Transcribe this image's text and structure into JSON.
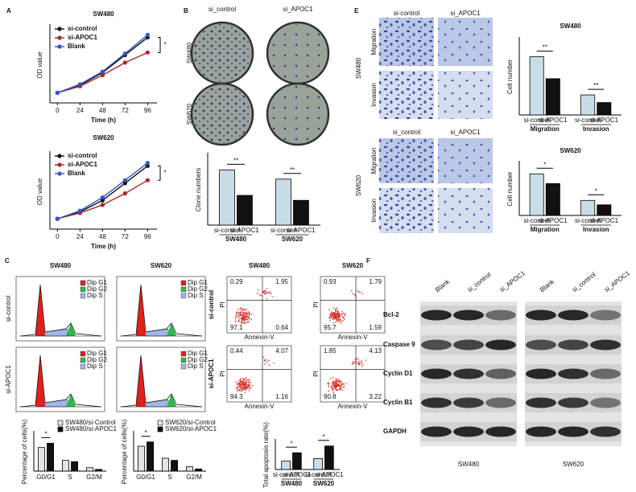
{
  "panel_labels": [
    "A",
    "B",
    "C",
    "E",
    "F"
  ],
  "chart_data": [
    {
      "type": "line",
      "title": "SW480",
      "x_label": "Time (h)",
      "y_label": "OD value",
      "x": [
        0,
        24,
        48,
        72,
        96
      ],
      "xlim": [
        -8,
        106
      ],
      "xticks": [
        0,
        24,
        48,
        72,
        96
      ],
      "ylim": [
        0,
        1.5
      ],
      "legend": "upper-left",
      "significance": "*",
      "series": [
        {
          "name": "si-control",
          "color": "#111111",
          "values": [
            0.2,
            0.35,
            0.6,
            0.95,
            1.3
          ]
        },
        {
          "name": "si-APOC1",
          "color": "#a52a2a",
          "values": [
            0.2,
            0.33,
            0.55,
            0.8,
            1.0
          ]
        },
        {
          "name": "Blank",
          "color": "#3355cc",
          "values": [
            0.2,
            0.37,
            0.62,
            0.98,
            1.35
          ]
        }
      ]
    },
    {
      "type": "line",
      "title": "SW620",
      "x_label": "Time (h)",
      "y_label": "OD value",
      "x": [
        0,
        24,
        48,
        72,
        96
      ],
      "xlim": [
        -8,
        106
      ],
      "xticks": [
        0,
        24,
        48,
        72,
        96
      ],
      "ylim": [
        0,
        1.3
      ],
      "legend": "upper-left",
      "significance": "*",
      "series": [
        {
          "name": "si-control",
          "color": "#111111",
          "values": [
            0.18,
            0.3,
            0.5,
            0.8,
            1.1
          ]
        },
        {
          "name": "si-APOC1",
          "color": "#a52a2a",
          "values": [
            0.18,
            0.28,
            0.42,
            0.62,
            0.85
          ]
        },
        {
          "name": "Blank",
          "color": "#3355cc",
          "values": [
            0.18,
            0.32,
            0.55,
            0.85,
            1.15
          ]
        }
      ]
    },
    {
      "type": "bar",
      "y_label": "Clone numbers",
      "categories": [
        "SW480",
        "SW620"
      ],
      "significance": [
        "**",
        "**"
      ],
      "ylim": [
        0,
        500
      ],
      "bar_labels": true,
      "series": [
        {
          "name": "si-control",
          "color": "#c9dde8",
          "values": [
            390,
            325
          ]
        },
        {
          "name": "si-APOC1",
          "color": "#111111",
          "values": [
            210,
            175
          ]
        }
      ]
    },
    {
      "type": "bar",
      "title": "SW480",
      "y_label": "Cell number",
      "categories": [
        "Migration",
        "Invasion"
      ],
      "significance": [
        "**",
        "**"
      ],
      "ylim": [
        0,
        400
      ],
      "bar_labels": true,
      "series": [
        {
          "name": "si-control",
          "color": "#c9dde8",
          "values": [
            305,
            105
          ]
        },
        {
          "name": "si-APOC1",
          "color": "#111111",
          "values": [
            190,
            65
          ]
        }
      ]
    },
    {
      "type": "bar",
      "title": "SW620",
      "y_label": "Cell number",
      "categories": [
        "Migration",
        "Invasion"
      ],
      "significance": [
        "*",
        "*"
      ],
      "ylim": [
        0,
        300
      ],
      "bar_labels": true,
      "series": [
        {
          "name": "si-control",
          "color": "#c9dde8",
          "values": [
            235,
            85
          ]
        },
        {
          "name": "si-APOC1",
          "color": "#111111",
          "values": [
            180,
            60
          ]
        }
      ]
    },
    {
      "type": "bar",
      "y_label": "Percentage of cells(%)",
      "categories": [
        "G0/G1",
        "S",
        "G2/M"
      ],
      "significance": [
        "*",
        null,
        null
      ],
      "ylim": [
        0,
        90
      ],
      "legend": "upper-right",
      "series": [
        {
          "name": "SW480/si-Control",
          "color": "#e4e4e4",
          "values": [
            55,
            25,
            8
          ]
        },
        {
          "name": "SW480/si-APOC1",
          "color": "#111111",
          "values": [
            65,
            22,
            4
          ]
        }
      ]
    },
    {
      "type": "bar",
      "y_label": "Percentage of cells(%)",
      "categories": [
        "G0/G1",
        "S",
        "G2/M"
      ],
      "significance": [
        "*",
        null,
        null
      ],
      "ylim": [
        0,
        90
      ],
      "legend": "upper-right",
      "series": [
        {
          "name": "SW620/si-Control",
          "color": "#e4e4e4",
          "values": [
            58,
            30,
            10
          ]
        },
        {
          "name": "SW620/si-APOC1",
          "color": "#111111",
          "values": [
            68,
            25,
            5
          ]
        }
      ]
    },
    {
      "type": "bar",
      "y_label": "Total apoptosis rate(%)",
      "categories": [
        "SW480",
        "SW620"
      ],
      "significance": [
        "*",
        "*"
      ],
      "ylim": [
        0,
        9
      ],
      "bar_labels": true,
      "series": [
        {
          "name": "si-control",
          "color": "#c9dde8",
          "values": [
            2.6,
            3.4
          ]
        },
        {
          "name": "si-APOC1",
          "color": "#111111",
          "values": [
            5.2,
            7.3
          ]
        }
      ]
    }
  ],
  "colony_assay": {
    "columns": [
      "si_control",
      "si_APOC1"
    ],
    "rows": [
      "SW480",
      "SW620"
    ]
  },
  "transwell": [
    {
      "cell_line": "SW480",
      "columns": [
        "si-control",
        "si_APOC1"
      ],
      "rows": [
        "Migration",
        "Invasion"
      ]
    },
    {
      "cell_line": "SW620",
      "columns": [
        "si_control",
        "si_APOC1"
      ],
      "rows": [
        "Migration",
        "Invasion"
      ]
    }
  ],
  "cell_cycle": {
    "titles": [
      "SW480",
      "SW620"
    ],
    "rows": [
      "si-control",
      "si-APOC1"
    ],
    "legend": [
      "Dip G1",
      "Dip G2",
      "Dip S"
    ]
  },
  "apoptosis": {
    "titles": [
      "SW480",
      "SW620"
    ],
    "rows": [
      "si-control",
      "si-APOC1"
    ],
    "x_label": "Annexin-V",
    "y_label": "PI",
    "quadrants": [
      [
        [
          0.29,
          1.95,
          97.1,
          0.64
        ],
        [
          0.44,
          4.07,
          94.3,
          1.16
        ]
      ],
      [
        [
          0.93,
          1.79,
          95.7,
          1.59
        ],
        [
          1.85,
          4.13,
          90.8,
          3.22
        ]
      ]
    ]
  },
  "western_blot": {
    "cell_lines": [
      "SW480",
      "SW620"
    ],
    "lanes": [
      "Blank",
      "si_control",
      "si_APOC1"
    ],
    "proteins": [
      "Bcl-2",
      "Caspase 9",
      "Cyclin D1",
      "Cyclin B1",
      "GAPDH"
    ]
  }
}
